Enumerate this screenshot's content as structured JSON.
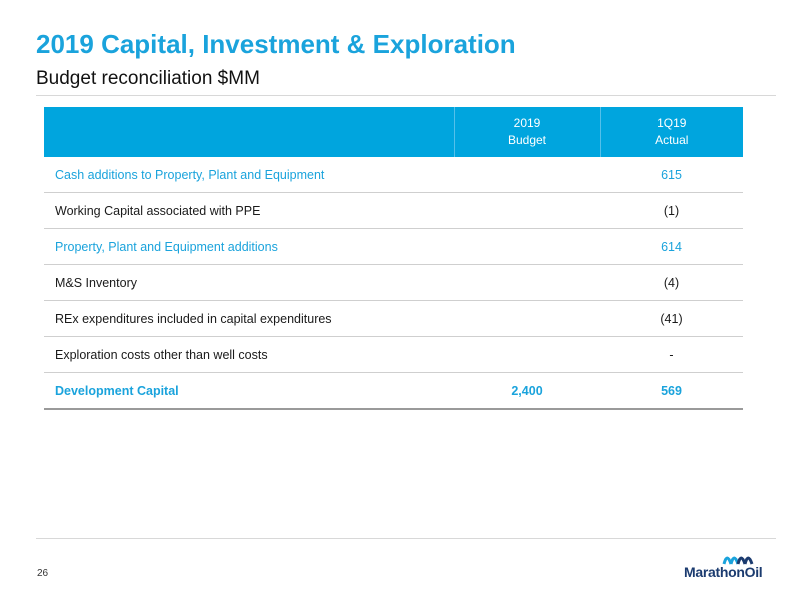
{
  "header": {
    "title": "2019 Capital, Investment & Exploration",
    "subtitle": "Budget reconciliation $MM"
  },
  "table": {
    "columns": [
      {
        "line1": "2019",
        "line2": "Budget"
      },
      {
        "line1": "1Q19",
        "line2": "Actual"
      }
    ],
    "rows": [
      {
        "label": "Cash additions to Property, Plant and Equipment",
        "budget": "",
        "actual": "615"
      },
      {
        "label": "Working Capital associated with PPE",
        "budget": "",
        "actual": "(1)"
      },
      {
        "label": "Property, Plant and Equipment additions",
        "budget": "",
        "actual": "614"
      },
      {
        "label": "M&S Inventory",
        "budget": "",
        "actual": "(4)"
      },
      {
        "label": "REx expenditures included in capital expenditures",
        "budget": "",
        "actual": "(41)"
      },
      {
        "label": "Exploration costs other than well costs",
        "budget": "",
        "actual": "-"
      },
      {
        "label": "Development Capital",
        "budget": "2,400",
        "actual": "569"
      }
    ]
  },
  "footer": {
    "page_number": "26",
    "logo_text": "MarathonOil"
  },
  "colors": {
    "accent": "#1aa3dc",
    "header_fill": "#00a5de",
    "logo_navy": "#1b3b6f"
  }
}
